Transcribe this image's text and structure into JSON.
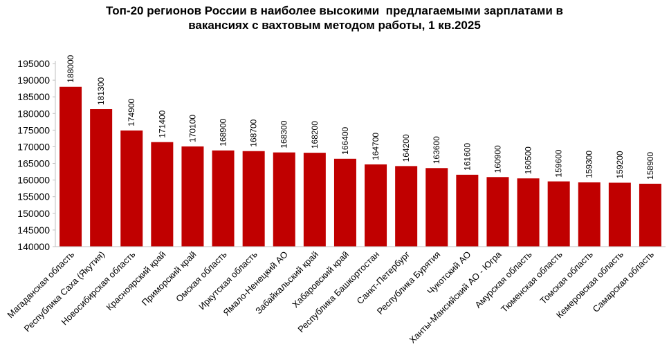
{
  "chart_data": {
    "type": "bar",
    "title_line1": "Топ-20 регионов России в наиболее высокими  предлагаемыми зарплатами в",
    "title_line2": "вакансиях с вахтовым методом работы, 1 кв.2025",
    "xlabel": "",
    "ylabel": "",
    "ylim": [
      140000,
      195000
    ],
    "yticks": [
      140000,
      145000,
      150000,
      155000,
      160000,
      165000,
      170000,
      175000,
      180000,
      185000,
      190000,
      195000
    ],
    "grid": false,
    "bar_color": "#C00000",
    "categories": [
      "Магаданская область",
      "Республика Саха (Якутия)",
      "Новосибирская область",
      "Красноярский край",
      "Приморский край",
      "Омская область",
      "Иркутская область",
      "Ямало-Ненецкий АО",
      "Забайкальский край",
      "Хабаровский край",
      "Республика Башкортостан",
      "Санкт-Петербург",
      "Республика Бурятия",
      "Чукотский АО",
      "Ханты-Мансийский АО - Югра",
      "Амурская область",
      "Тюменская область",
      "Томская область",
      "Кемеровская область",
      "Самарская область"
    ],
    "values": [
      188000,
      181300,
      174900,
      171400,
      170100,
      168900,
      168700,
      168300,
      168200,
      166400,
      164700,
      164200,
      163600,
      161600,
      160900,
      160500,
      159600,
      159300,
      159200,
      158900
    ]
  }
}
